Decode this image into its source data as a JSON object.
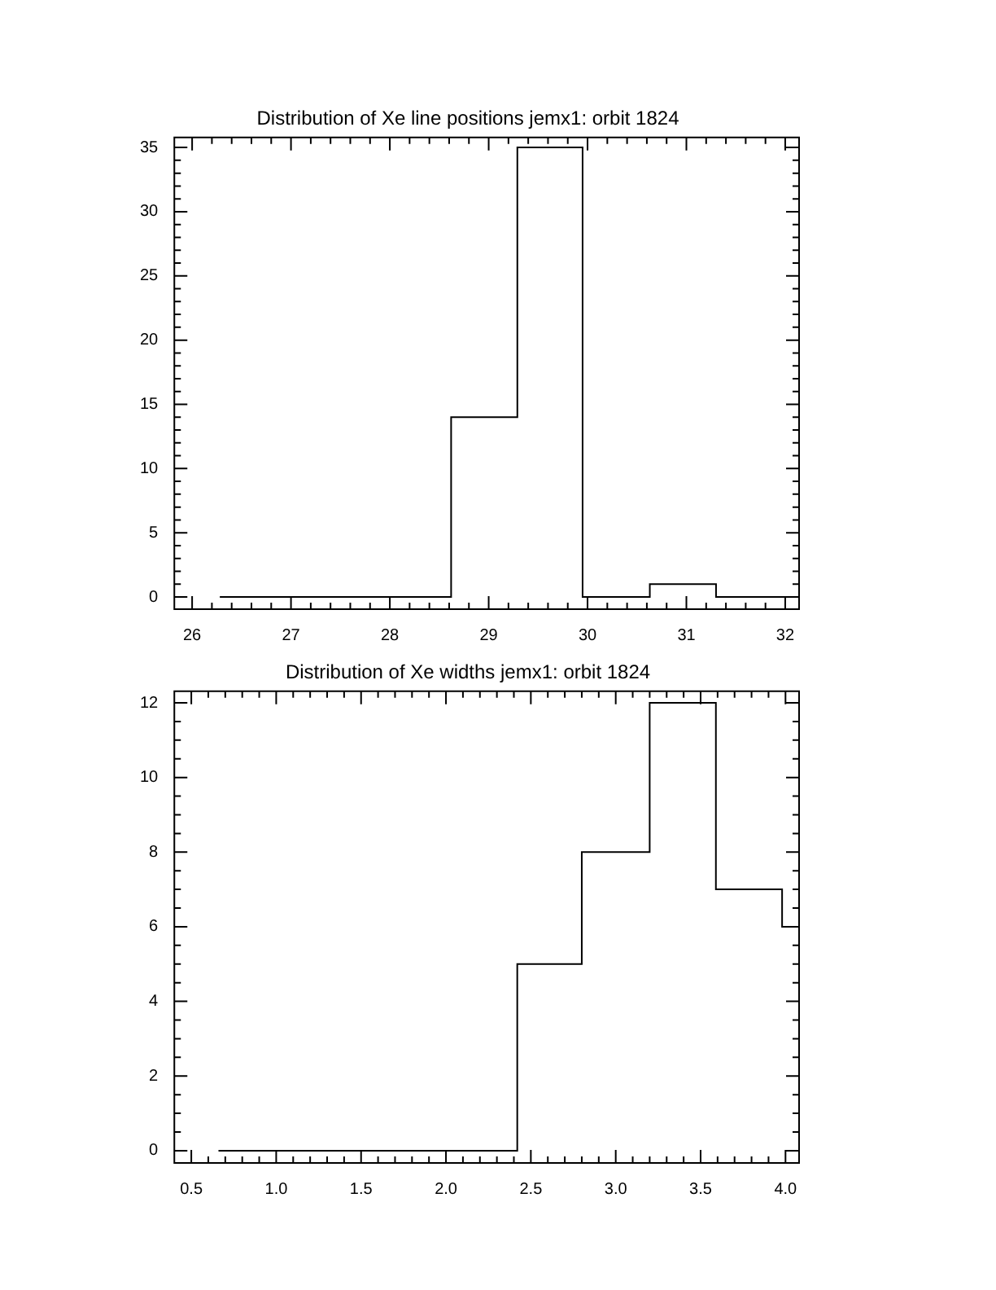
{
  "chart_data": [
    {
      "type": "histogram",
      "title": "Distribution of Xe line positions jemx1: orbit 1824",
      "color": "#000000",
      "bins": [
        26.28,
        28.62,
        29.29,
        29.95,
        30.63,
        31.3,
        32.14
      ],
      "values": [
        0,
        14,
        35,
        0,
        1,
        0
      ],
      "xlim": [
        25.82,
        32.14
      ],
      "ylim": [
        -0.95,
        35.78
      ],
      "xticks": [
        26,
        {
          "value": 26.2,
          "label": null
        },
        {
          "value": 26.4,
          "label": null
        },
        {
          "value": 26.6,
          "label": null
        },
        {
          "value": 26.8,
          "label": null
        },
        27,
        {
          "value": 27.2,
          "label": null
        },
        {
          "value": 27.4,
          "label": null
        },
        {
          "value": 27.6,
          "label": null
        },
        {
          "value": 27.8,
          "label": null
        },
        28,
        {
          "value": 28.2,
          "label": null
        },
        {
          "value": 28.4,
          "label": null
        },
        {
          "value": 28.6,
          "label": null
        },
        {
          "value": 28.8,
          "label": null
        },
        29,
        {
          "value": 29.2,
          "label": null
        },
        {
          "value": 29.4,
          "label": null
        },
        {
          "value": 29.6,
          "label": null
        },
        {
          "value": 29.8,
          "label": null
        },
        30,
        {
          "value": 30.2,
          "label": null
        },
        {
          "value": 30.4,
          "label": null
        },
        {
          "value": 30.6,
          "label": null
        },
        {
          "value": 30.8,
          "label": null
        },
        31,
        {
          "value": 31.2,
          "label": null
        },
        {
          "value": 31.4,
          "label": null
        },
        {
          "value": 31.6,
          "label": null
        },
        {
          "value": 31.8,
          "label": null
        },
        32
      ],
      "yticks": [
        0,
        {
          "value": 1,
          "label": null
        },
        {
          "value": 2,
          "label": null
        },
        {
          "value": 3,
          "label": null
        },
        {
          "value": 4,
          "label": null
        },
        5,
        {
          "value": 6,
          "label": null
        },
        {
          "value": 7,
          "label": null
        },
        {
          "value": 8,
          "label": null
        },
        {
          "value": 9,
          "label": null
        },
        10,
        {
          "value": 11,
          "label": null
        },
        {
          "value": 12,
          "label": null
        },
        {
          "value": 13,
          "label": null
        },
        {
          "value": 14,
          "label": null
        },
        15,
        {
          "value": 16,
          "label": null
        },
        {
          "value": 17,
          "label": null
        },
        {
          "value": 18,
          "label": null
        },
        {
          "value": 19,
          "label": null
        },
        20,
        {
          "value": 21,
          "label": null
        },
        {
          "value": 22,
          "label": null
        },
        {
          "value": 23,
          "label": null
        },
        {
          "value": 24,
          "label": null
        },
        25,
        {
          "value": 26,
          "label": null
        },
        {
          "value": 27,
          "label": null
        },
        {
          "value": 28,
          "label": null
        },
        {
          "value": 29,
          "label": null
        },
        30,
        {
          "value": 31,
          "label": null
        },
        {
          "value": 32,
          "label": null
        },
        {
          "value": 33,
          "label": null
        },
        {
          "value": 34,
          "label": null
        },
        35
      ]
    },
    {
      "type": "histogram",
      "title": "Distribution of Xe widths jemx1: orbit 1824",
      "color": "#000000",
      "bins": [
        0.66,
        2.42,
        2.8,
        3.2,
        3.59,
        3.98,
        4.08
      ],
      "values": [
        0,
        5,
        8,
        12,
        7,
        6
      ],
      "xlim": [
        0.4,
        4.08
      ],
      "ylim": [
        -0.33,
        12.31
      ],
      "xticks": [
        0.5,
        {
          "value": 0.6,
          "label": null
        },
        {
          "value": 0.7,
          "label": null
        },
        {
          "value": 0.8,
          "label": null
        },
        {
          "value": 0.9,
          "label": null
        },
        {
          "value": 1,
          "label": "1.0"
        },
        {
          "value": 1.1,
          "label": null
        },
        {
          "value": 1.2,
          "label": null
        },
        {
          "value": 1.3,
          "label": null
        },
        {
          "value": 1.4,
          "label": null
        },
        1.5,
        {
          "value": 1.6,
          "label": null
        },
        {
          "value": 1.7,
          "label": null
        },
        {
          "value": 1.8,
          "label": null
        },
        {
          "value": 1.9,
          "label": null
        },
        {
          "value": 2,
          "label": "2.0"
        },
        {
          "value": 2.1,
          "label": null
        },
        {
          "value": 2.2,
          "label": null
        },
        {
          "value": 2.3,
          "label": null
        },
        {
          "value": 2.4,
          "label": null
        },
        2.5,
        {
          "value": 2.6,
          "label": null
        },
        {
          "value": 2.7,
          "label": null
        },
        {
          "value": 2.8,
          "label": null
        },
        {
          "value": 2.9,
          "label": null
        },
        {
          "value": 3,
          "label": "3.0"
        },
        {
          "value": 3.1,
          "label": null
        },
        {
          "value": 3.2,
          "label": null
        },
        {
          "value": 3.3,
          "label": null
        },
        {
          "value": 3.4,
          "label": null
        },
        3.5,
        {
          "value": 3.6,
          "label": null
        },
        {
          "value": 3.7,
          "label": null
        },
        {
          "value": 3.8,
          "label": null
        },
        {
          "value": 3.9,
          "label": null
        },
        {
          "value": 4,
          "label": "4.0"
        }
      ],
      "yticks": [
        0,
        {
          "value": 0.5,
          "label": null
        },
        {
          "value": 1,
          "label": null
        },
        {
          "value": 1.5,
          "label": null
        },
        2,
        {
          "value": 2.5,
          "label": null
        },
        {
          "value": 3,
          "label": null
        },
        {
          "value": 3.5,
          "label": null
        },
        4,
        {
          "value": 4.5,
          "label": null
        },
        {
          "value": 5,
          "label": null
        },
        {
          "value": 5.5,
          "label": null
        },
        6,
        {
          "value": 6.5,
          "label": null
        },
        {
          "value": 7,
          "label": null
        },
        {
          "value": 7.5,
          "label": null
        },
        8,
        {
          "value": 8.5,
          "label": null
        },
        {
          "value": 9,
          "label": null
        },
        {
          "value": 9.5,
          "label": null
        },
        10,
        {
          "value": 10.5,
          "label": null
        },
        {
          "value": 11,
          "label": null
        },
        {
          "value": 11.5,
          "label": null
        },
        12
      ]
    }
  ]
}
